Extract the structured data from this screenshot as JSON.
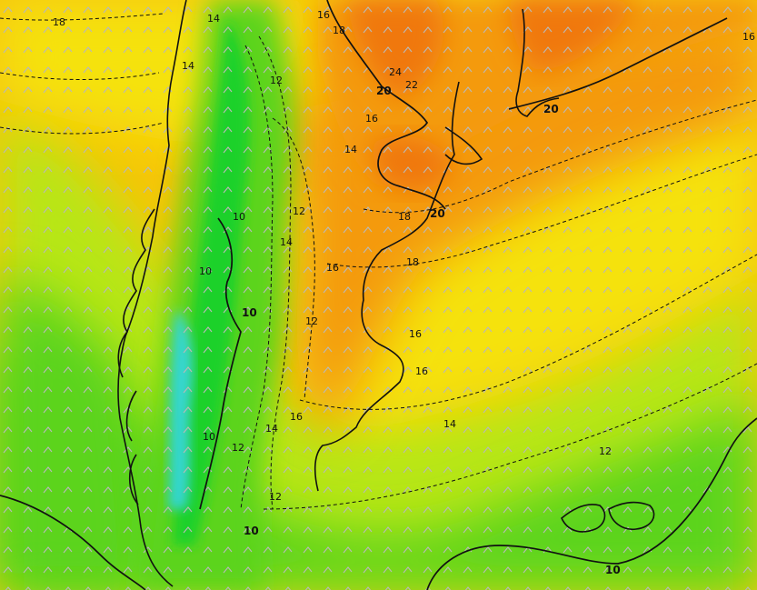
{
  "map": {
    "region": "",
    "colors": {
      "cold_cyan": "#35d6d0",
      "cool_green": "#1fd12a",
      "green": "#5bd41c",
      "yellow_green": "#b8e612",
      "yellow": "#f5e20a",
      "yellow_orange": "#f6c508",
      "orange": "#f49a0c",
      "dark_orange": "#f0780e",
      "land_outline": "#111111",
      "wind_barb": "#b8b8b8"
    },
    "contour_labels": [
      {
        "id": "c18-nw",
        "text": "18"
      },
      {
        "id": "c14-top",
        "text": "14"
      },
      {
        "id": "c16-top",
        "text": "16"
      },
      {
        "id": "c18-top",
        "text": "18"
      },
      {
        "id": "c24",
        "text": "24"
      },
      {
        "id": "c22",
        "text": "22"
      },
      {
        "id": "c20-north",
        "text": "20"
      },
      {
        "id": "c20-ne",
        "text": "20"
      },
      {
        "id": "c16-ne",
        "text": "16"
      },
      {
        "id": "c14-a",
        "text": "14"
      },
      {
        "id": "c12-a",
        "text": "12"
      },
      {
        "id": "c12-b",
        "text": "12"
      },
      {
        "id": "c16-b",
        "text": "16"
      },
      {
        "id": "c14-b",
        "text": "14"
      },
      {
        "id": "c18-center",
        "text": "18"
      },
      {
        "id": "c20-center",
        "text": "20"
      },
      {
        "id": "c10-a",
        "text": "10"
      },
      {
        "id": "c14-c",
        "text": "14"
      },
      {
        "id": "c16-c",
        "text": "16"
      },
      {
        "id": "c18-c",
        "text": "18"
      },
      {
        "id": "c10-b",
        "text": "10"
      },
      {
        "id": "c10-c",
        "text": "10"
      },
      {
        "id": "c12-c",
        "text": "12"
      },
      {
        "id": "c16-d",
        "text": "16"
      },
      {
        "id": "c16-e",
        "text": "16"
      },
      {
        "id": "c14-d",
        "text": "14"
      },
      {
        "id": "c10-d",
        "text": "10"
      },
      {
        "id": "c16-f",
        "text": "16"
      },
      {
        "id": "c14-e",
        "text": "14"
      },
      {
        "id": "c12-d",
        "text": "12"
      },
      {
        "id": "c12-e",
        "text": "12"
      },
      {
        "id": "c12-f",
        "text": "12"
      },
      {
        "id": "c10-e",
        "text": "10"
      },
      {
        "id": "c10-f",
        "text": "10"
      }
    ]
  }
}
